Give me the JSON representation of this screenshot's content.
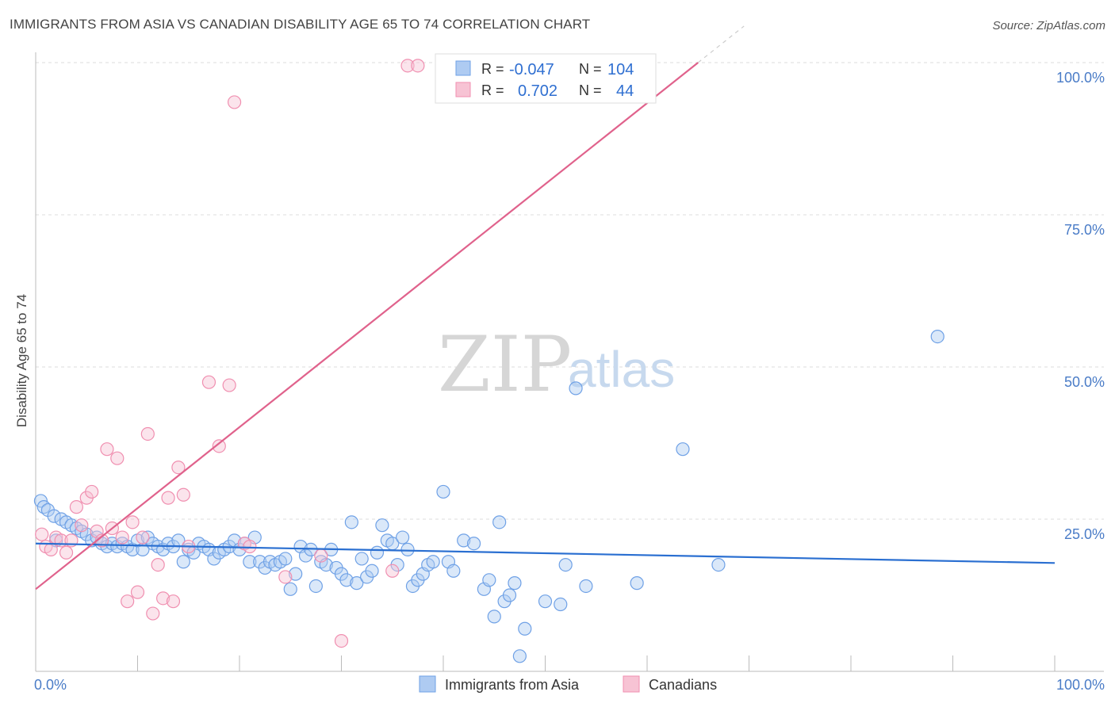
{
  "header": {
    "title": "IMMIGRANTS FROM ASIA VS CANADIAN DISABILITY AGE 65 TO 74 CORRELATION CHART",
    "source": "Source: ZipAtlas.com"
  },
  "watermark": {
    "zip": "ZIP",
    "atlas": "atlas"
  },
  "chart_data": {
    "type": "scatter",
    "title": "IMMIGRANTS FROM ASIA VS CANADIAN DISABILITY AGE 65 TO 74 CORRELATION CHART",
    "xlabel": "",
    "ylabel": "Disability Age 65 to 74",
    "xlim": [
      0,
      100
    ],
    "ylim": [
      0,
      100
    ],
    "x_tick_labels": [
      "0.0%",
      "100.0%"
    ],
    "y_ticks": [
      25,
      50,
      75,
      100
    ],
    "y_tick_labels": [
      "25.0%",
      "50.0%",
      "75.0%",
      "100.0%"
    ],
    "grid": "horizontal dashed",
    "legend_placement": "bottom-center",
    "stats_box": [
      {
        "r_label": "R =",
        "r_value": "-0.047",
        "n_label": "N =",
        "n_value": "104"
      },
      {
        "r_label": "R =",
        "r_value": "0.702",
        "n_label": "N =",
        "n_value": "44"
      }
    ],
    "series": [
      {
        "name": "Immigrants from Asia",
        "color": "#6fa1e6",
        "fill": "#aecbf2",
        "line_color": "#2a6fd1",
        "trend": {
          "x": [
            0,
            100
          ],
          "y": [
            21.0,
            17.8
          ]
        },
        "points": [
          [
            0.5,
            28.0
          ],
          [
            0.8,
            27.0
          ],
          [
            1.2,
            26.5
          ],
          [
            1.8,
            25.5
          ],
          [
            2.5,
            25.0
          ],
          [
            3.0,
            24.5
          ],
          [
            3.5,
            24.0
          ],
          [
            4.0,
            23.5
          ],
          [
            4.5,
            23.0
          ],
          [
            5.0,
            22.5
          ],
          [
            5.5,
            21.5
          ],
          [
            6.0,
            22.0
          ],
          [
            6.5,
            21.0
          ],
          [
            7.0,
            20.5
          ],
          [
            7.5,
            21.0
          ],
          [
            8.0,
            20.5
          ],
          [
            8.5,
            21.0
          ],
          [
            9.0,
            20.5
          ],
          [
            9.5,
            20.0
          ],
          [
            10.0,
            21.5
          ],
          [
            10.5,
            20.0
          ],
          [
            11.0,
            22.0
          ],
          [
            11.5,
            21.0
          ],
          [
            12.0,
            20.5
          ],
          [
            12.5,
            20.0
          ],
          [
            13.0,
            21.0
          ],
          [
            13.5,
            20.5
          ],
          [
            14.0,
            21.5
          ],
          [
            14.5,
            18.0
          ],
          [
            15.0,
            20.0
          ],
          [
            15.5,
            19.5
          ],
          [
            16.0,
            21.0
          ],
          [
            16.5,
            20.5
          ],
          [
            17.0,
            20.0
          ],
          [
            17.5,
            18.5
          ],
          [
            18.0,
            19.5
          ],
          [
            18.5,
            20.0
          ],
          [
            19.0,
            20.5
          ],
          [
            19.5,
            21.5
          ],
          [
            20.0,
            20.0
          ],
          [
            20.5,
            21.0
          ],
          [
            21.0,
            18.0
          ],
          [
            21.5,
            22.0
          ],
          [
            22.0,
            18.0
          ],
          [
            22.5,
            17.0
          ],
          [
            23.0,
            18.0
          ],
          [
            23.5,
            17.5
          ],
          [
            24.0,
            18.0
          ],
          [
            24.5,
            18.5
          ],
          [
            25.0,
            13.5
          ],
          [
            25.5,
            16.0
          ],
          [
            26.0,
            20.5
          ],
          [
            26.5,
            19.0
          ],
          [
            27.0,
            20.0
          ],
          [
            27.5,
            14.0
          ],
          [
            28.0,
            18.0
          ],
          [
            28.5,
            17.5
          ],
          [
            29.0,
            20.0
          ],
          [
            29.5,
            17.0
          ],
          [
            30.0,
            16.0
          ],
          [
            30.5,
            15.0
          ],
          [
            31.0,
            24.5
          ],
          [
            31.5,
            14.5
          ],
          [
            32.0,
            18.5
          ],
          [
            32.5,
            15.5
          ],
          [
            33.0,
            16.5
          ],
          [
            33.5,
            19.5
          ],
          [
            34.0,
            24.0
          ],
          [
            34.5,
            21.5
          ],
          [
            35.0,
            21.0
          ],
          [
            35.5,
            17.5
          ],
          [
            36.0,
            22.0
          ],
          [
            36.5,
            20.0
          ],
          [
            37.0,
            14.0
          ],
          [
            37.5,
            15.0
          ],
          [
            38.0,
            16.0
          ],
          [
            38.5,
            17.5
          ],
          [
            39.0,
            18.0
          ],
          [
            40.0,
            29.5
          ],
          [
            40.5,
            18.0
          ],
          [
            41.0,
            16.5
          ],
          [
            42.0,
            21.5
          ],
          [
            43.0,
            21.0
          ],
          [
            44.0,
            13.5
          ],
          [
            44.5,
            15.0
          ],
          [
            45.0,
            9.0
          ],
          [
            45.5,
            24.5
          ],
          [
            46.0,
            11.5
          ],
          [
            46.5,
            12.5
          ],
          [
            47.0,
            14.5
          ],
          [
            47.5,
            2.5
          ],
          [
            48.0,
            7.0
          ],
          [
            50.0,
            11.5
          ],
          [
            51.5,
            11.0
          ],
          [
            52.0,
            17.5
          ],
          [
            53.0,
            46.5
          ],
          [
            54.0,
            14.0
          ],
          [
            59.0,
            14.5
          ],
          [
            63.5,
            36.5
          ],
          [
            67.0,
            17.5
          ],
          [
            88.5,
            55.0
          ],
          [
            2.0,
            21.5
          ]
        ]
      },
      {
        "name": "Canadians",
        "color": "#f08fb0",
        "fill": "#f7c3d4",
        "line_color": "#e0628c",
        "trend": {
          "x": [
            0,
            65
          ],
          "y": [
            13.5,
            100
          ]
        },
        "points": [
          [
            0.6,
            22.5
          ],
          [
            1.0,
            20.5
          ],
          [
            1.5,
            20.0
          ],
          [
            2.0,
            22.0
          ],
          [
            2.5,
            21.5
          ],
          [
            3.0,
            19.5
          ],
          [
            3.5,
            21.5
          ],
          [
            4.0,
            27.0
          ],
          [
            4.5,
            24.0
          ],
          [
            5.0,
            28.5
          ],
          [
            5.5,
            29.5
          ],
          [
            6.0,
            23.0
          ],
          [
            6.5,
            21.5
          ],
          [
            7.0,
            36.5
          ],
          [
            7.5,
            23.5
          ],
          [
            8.0,
            35.0
          ],
          [
            8.5,
            22.0
          ],
          [
            9.0,
            11.5
          ],
          [
            9.5,
            24.5
          ],
          [
            10.0,
            13.0
          ],
          [
            10.5,
            22.0
          ],
          [
            11.0,
            39.0
          ],
          [
            11.5,
            9.5
          ],
          [
            12.0,
            17.5
          ],
          [
            12.5,
            12.0
          ],
          [
            13.0,
            28.5
          ],
          [
            13.5,
            11.5
          ],
          [
            14.0,
            33.5
          ],
          [
            14.5,
            29.0
          ],
          [
            15.0,
            20.5
          ],
          [
            17.0,
            47.5
          ],
          [
            18.0,
            37.0
          ],
          [
            19.0,
            47.0
          ],
          [
            20.5,
            21.0
          ],
          [
            21.0,
            20.5
          ],
          [
            24.5,
            15.5
          ],
          [
            28.0,
            19.0
          ],
          [
            30.0,
            5.0
          ],
          [
            35.0,
            16.5
          ],
          [
            36.5,
            99.5
          ],
          [
            37.5,
            99.5
          ],
          [
            54.5,
            99.0
          ],
          [
            57.0,
            99.5
          ],
          [
            19.5,
            93.5
          ]
        ]
      }
    ]
  }
}
